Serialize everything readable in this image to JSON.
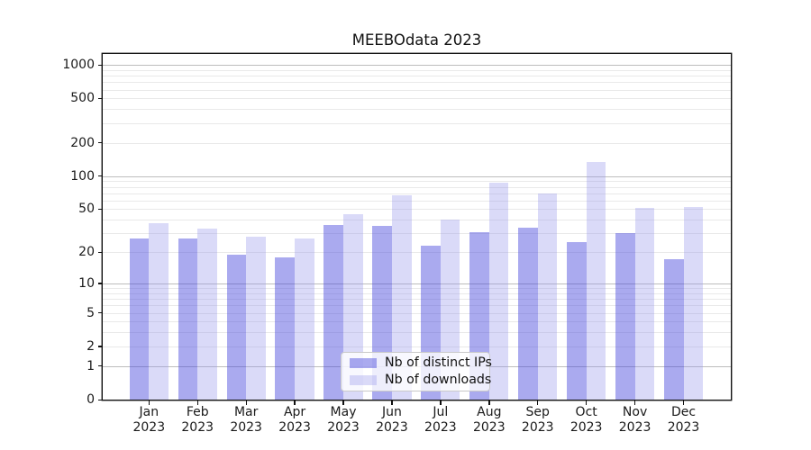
{
  "figure": {
    "title": "MEEBOdata 2023",
    "background": "#ffffff"
  },
  "chart_data": {
    "type": "bar",
    "title": "MEEBOdata 2023",
    "x": {
      "months": [
        "Jan",
        "Feb",
        "Mar",
        "Apr",
        "May",
        "Jun",
        "Jul",
        "Aug",
        "Sep",
        "Oct",
        "Nov",
        "Dec"
      ],
      "year": "2023"
    },
    "series": [
      {
        "name": "Nb of distinct IPs",
        "color": "rgba(70,70,220,0.46)",
        "values": [
          27,
          27,
          19,
          18,
          36,
          35,
          23,
          31,
          34,
          25,
          30,
          17
        ]
      },
      {
        "name": "Nb of downloads",
        "color": "rgba(150,150,235,0.35)",
        "values": [
          37,
          33,
          28,
          27,
          45,
          67,
          40,
          87,
          70,
          135,
          51,
          52
        ]
      }
    ],
    "yscale": "log10(1+y)",
    "ylim": [
      0,
      1280
    ],
    "y_tick_labels": [
      "0",
      "1",
      "2",
      "5",
      "10",
      "20",
      "50",
      "100",
      "200",
      "500",
      "1000"
    ],
    "y_tick_values": [
      0,
      1,
      2,
      5,
      10,
      20,
      50,
      100,
      200,
      500,
      1000
    ],
    "major_grid_values": [
      1,
      10,
      100,
      1000
    ],
    "minor_grid_values": [
      2,
      3,
      4,
      5,
      6,
      7,
      8,
      9,
      20,
      30,
      40,
      50,
      60,
      70,
      80,
      90,
      200,
      300,
      400,
      500,
      600,
      700,
      800,
      900
    ],
    "grid": true,
    "legend": {
      "position": "lower-center"
    },
    "colors": {
      "major_grid": "#bdbdbd",
      "minor_grid": "#e9e9e9",
      "axis": "#111111",
      "text": "#1a1a1a"
    }
  }
}
